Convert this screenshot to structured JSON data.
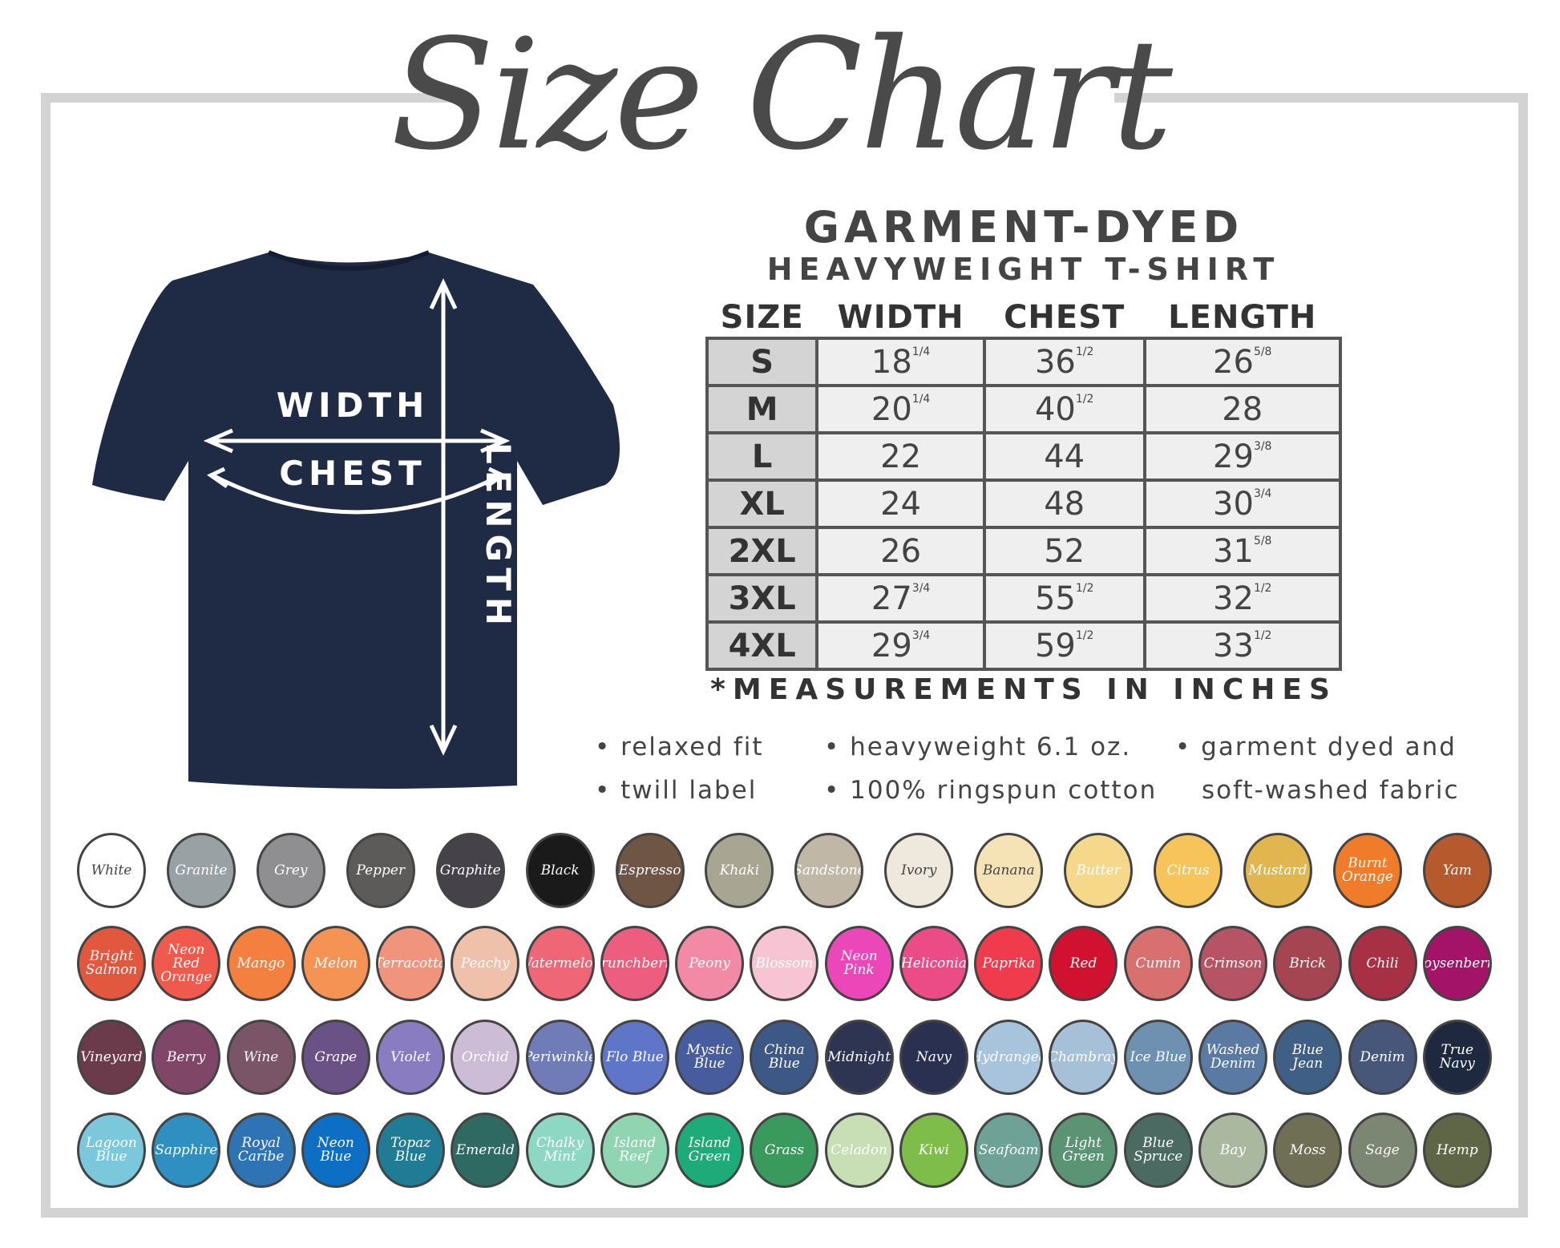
{
  "title": "Size Chart",
  "heading": "GARMENT-DYED",
  "subheading": "HEAVYWEIGHT T-SHIRT",
  "diagram": {
    "width": "WIDTH",
    "chest": "CHEST",
    "length": "LENGTH",
    "shirt_color": "#1f2a44"
  },
  "table": {
    "headers": [
      "SIZE",
      "WIDTH",
      "CHEST",
      "LENGTH"
    ],
    "rows": [
      [
        {
          "w": "S"
        },
        {
          "w": "18",
          "f": "1/4"
        },
        {
          "w": "36",
          "f": "1/2"
        },
        {
          "w": "26",
          "f": "5/8"
        }
      ],
      [
        {
          "w": "M"
        },
        {
          "w": "20",
          "f": "1/4"
        },
        {
          "w": "40",
          "f": "1/2"
        },
        {
          "w": "28"
        }
      ],
      [
        {
          "w": "L"
        },
        {
          "w": "22"
        },
        {
          "w": "44"
        },
        {
          "w": "29",
          "f": "3/8"
        }
      ],
      [
        {
          "w": "XL"
        },
        {
          "w": "24"
        },
        {
          "w": "48"
        },
        {
          "w": "30",
          "f": "3/4"
        }
      ],
      [
        {
          "w": "2XL"
        },
        {
          "w": "26"
        },
        {
          "w": "52"
        },
        {
          "w": "31",
          "f": "5/8"
        }
      ],
      [
        {
          "w": "3XL"
        },
        {
          "w": "27",
          "f": "3/4"
        },
        {
          "w": "55",
          "f": "1/2"
        },
        {
          "w": "32",
          "f": "1/2"
        }
      ],
      [
        {
          "w": "4XL"
        },
        {
          "w": "29",
          "f": "3/4"
        },
        {
          "w": "59",
          "f": "1/2"
        },
        {
          "w": "33",
          "f": "1/2"
        }
      ]
    ]
  },
  "note": "*MEASUREMENTS IN INCHES",
  "features": {
    "col1": [
      "• relaxed fit",
      "• twill label"
    ],
    "col2": [
      "• heavyweight 6.1 oz.",
      "• 100% ringspun cotton"
    ],
    "col3": [
      "• garment dyed and",
      "soft-washed fabric"
    ]
  },
  "swatches": [
    [
      [
        "White",
        "#ffffff"
      ],
      [
        "Granite",
        "#9aa1a4"
      ],
      [
        "Grey",
        "#8f8f92"
      ],
      [
        "Pepper",
        "#5d5b5a"
      ],
      [
        "Graphite",
        "#45424a"
      ],
      [
        "Black",
        "#1a1a1a"
      ],
      [
        "Espresso",
        "#6e5544"
      ],
      [
        "Khaki",
        "#a9a593"
      ],
      [
        "Sandstone",
        "#c0b7a6"
      ],
      [
        "Ivory",
        "#efe8dd"
      ],
      [
        "Banana",
        "#f5e3b5"
      ],
      [
        "Butter",
        "#f6d88a"
      ],
      [
        "Citrus",
        "#f7c45b"
      ],
      [
        "Mustard",
        "#e2b64f"
      ],
      [
        "Burnt Orange",
        "#f07c2a"
      ],
      [
        "Yam",
        "#b65a2e"
      ]
    ],
    [
      [
        "Bright Salmon",
        "#e2583e"
      ],
      [
        "Neon Red Orange",
        "#ef5a4c"
      ],
      [
        "Mango",
        "#f4803f"
      ],
      [
        "Melon",
        "#f59355"
      ],
      [
        "Terracotta",
        "#f0947d"
      ],
      [
        "Peachy",
        "#efc0aa"
      ],
      [
        "Watermelon",
        "#ef6677"
      ],
      [
        "Crunchberry",
        "#ec5d80"
      ],
      [
        "Peony",
        "#f28aa5"
      ],
      [
        "Blossom",
        "#f7c4d3"
      ],
      [
        "Neon Pink",
        "#ec47b8"
      ],
      [
        "Heliconia",
        "#ec4c86"
      ],
      [
        "Paprika",
        "#ef3b4b"
      ],
      [
        "Red",
        "#d0112f"
      ],
      [
        "Cumin",
        "#d8706f"
      ],
      [
        "Crimson",
        "#b65466"
      ],
      [
        "Brick",
        "#a44551"
      ],
      [
        "Chili",
        "#a83044"
      ],
      [
        "Boysenberry",
        "#a31368"
      ]
    ],
    [
      [
        "Vineyard",
        "#6b3b4b"
      ],
      [
        "Berry",
        "#7f4668"
      ],
      [
        "Wine",
        "#7a5467"
      ],
      [
        "Grape",
        "#6a5287"
      ],
      [
        "Violet",
        "#8a7cc0"
      ],
      [
        "Orchid",
        "#cdbcd6"
      ],
      [
        "Periwinkle",
        "#6f7cb8"
      ],
      [
        "Flo Blue",
        "#5f76c8"
      ],
      [
        "Mystic Blue",
        "#465c9d"
      ],
      [
        "China Blue",
        "#3d5884"
      ],
      [
        "Midnight",
        "#2d3552"
      ],
      [
        "Navy",
        "#2a3150"
      ],
      [
        "Hydrangea",
        "#a8c3dc"
      ],
      [
        "Chambray",
        "#a6c0d8"
      ],
      [
        "Ice Blue",
        "#6f91b1"
      ],
      [
        "Washed Denim",
        "#5b7aa3"
      ],
      [
        "Blue Jean",
        "#3f5f84"
      ],
      [
        "Denim",
        "#46577a"
      ],
      [
        "True Navy",
        "#1e2940"
      ]
    ],
    [
      [
        "Lagoon Blue",
        "#7bc7dc"
      ],
      [
        "Sapphire",
        "#2f8fc0"
      ],
      [
        "Royal Caribe",
        "#2e74b4"
      ],
      [
        "Neon Blue",
        "#0c6fc4"
      ],
      [
        "Topaz Blue",
        "#1f7c94"
      ],
      [
        "Emerald",
        "#2f6a62"
      ],
      [
        "Chalky Mint",
        "#8ed8c3"
      ],
      [
        "Island Reef",
        "#8fd5b2"
      ],
      [
        "Island Green",
        "#1faa7a"
      ],
      [
        "Grass",
        "#3a9a5d"
      ],
      [
        "Celadon",
        "#c8dfb6"
      ],
      [
        "Kiwi",
        "#7fbd4a"
      ],
      [
        "Seafoam",
        "#6fa297"
      ],
      [
        "Light Green",
        "#5b9475"
      ],
      [
        "Blue Spruce",
        "#4a6a62"
      ],
      [
        "Bay",
        "#aab8a0"
      ],
      [
        "Moss",
        "#6e6f54"
      ],
      [
        "Sage",
        "#7b8673"
      ],
      [
        "Hemp",
        "#5e6647"
      ]
    ]
  ]
}
